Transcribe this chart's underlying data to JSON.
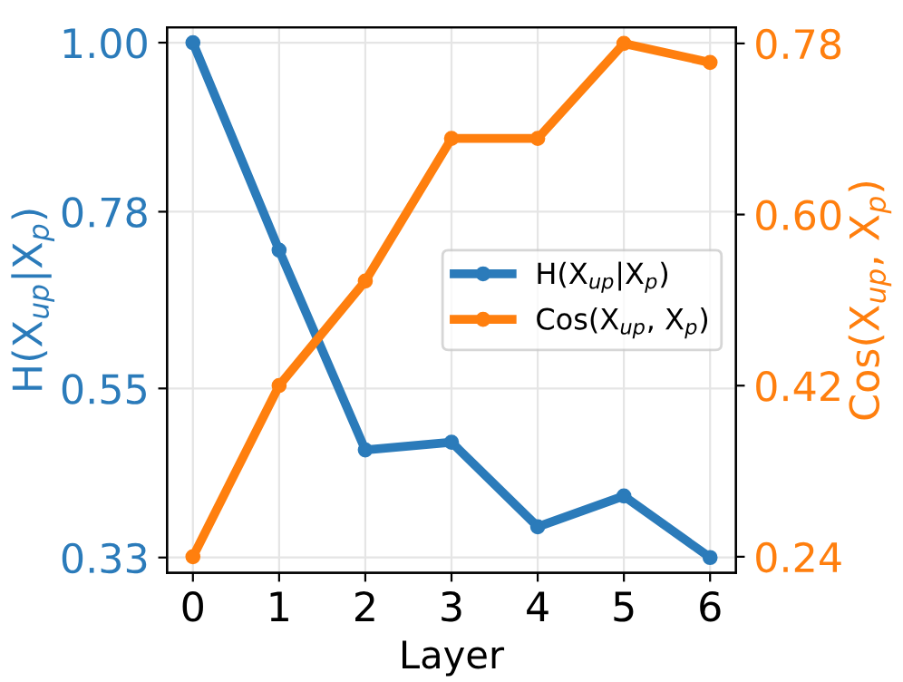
{
  "chart_data": {
    "type": "line",
    "xlabel": "Layer",
    "ylabel": "H(X$_{up}$|X$_{p}$)",
    "y2label": "Cos(X$_{up}$, X$_{p}$)",
    "x": [
      0,
      1,
      2,
      3,
      4,
      5,
      6
    ],
    "xlim": [
      -0.3,
      6.3
    ],
    "xticks": [
      0,
      1,
      2,
      3,
      4,
      5,
      6
    ],
    "ylim": [
      0.31,
      1.02
    ],
    "yticks": [
      {
        "value": 1.0,
        "label": "1.00"
      },
      0.78,
      0.55,
      0.33
    ],
    "y2lim": [
      0.223,
      0.797
    ],
    "y2ticks": [
      0.78,
      {
        "value": 0.6,
        "label": "0.60"
      },
      0.42,
      0.24
    ],
    "grid": true,
    "legend": "center right",
    "marker": "circle",
    "line_style": "solid",
    "series": [
      {
        "name": "H(X$_{up}$|X$_{p}$)",
        "color": "#2b7bba",
        "values": [
          1.0,
          0.73,
          0.47,
          0.48,
          0.37,
          0.41,
          0.33
        ]
      },
      {
        "name": "Cos(X$_{up}$, X$_{p}$)",
        "color": "#ff7f0e",
        "axis": "y2",
        "values": [
          0.24,
          0.42,
          0.53,
          0.68,
          0.68,
          0.78,
          0.76
        ]
      }
    ]
  }
}
